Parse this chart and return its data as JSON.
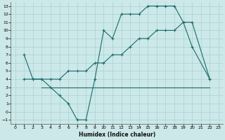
{
  "xlabel": "Humidex (Indice chaleur)",
  "bg_color": "#cce8e8",
  "line_color": "#1a6b6b",
  "xlim": [
    -0.5,
    23.5
  ],
  "ylim": [
    -1.5,
    13.5
  ],
  "xticks": [
    0,
    1,
    2,
    3,
    4,
    5,
    6,
    7,
    8,
    9,
    10,
    11,
    12,
    13,
    14,
    15,
    16,
    17,
    18,
    19,
    20,
    21,
    22,
    23
  ],
  "yticks": [
    -1,
    0,
    1,
    2,
    3,
    4,
    5,
    6,
    7,
    8,
    9,
    10,
    11,
    12,
    13
  ],
  "line1_x": [
    1,
    2,
    3,
    4,
    5,
    6,
    7,
    8,
    9,
    10,
    11,
    12,
    13,
    14,
    15,
    16,
    17,
    18,
    19,
    20,
    22
  ],
  "line1_y": [
    7,
    4,
    4,
    3,
    2,
    1,
    -1,
    -1,
    4,
    10,
    9,
    12,
    12,
    12,
    13,
    13,
    13,
    13,
    11,
    8,
    4
  ],
  "line2_x": [
    3,
    22
  ],
  "line2_y": [
    3,
    3
  ],
  "line3_x": [
    1,
    2,
    3,
    4,
    5,
    6,
    7,
    8,
    9,
    10,
    11,
    12,
    13,
    14,
    15,
    16,
    17,
    18,
    19,
    20,
    22
  ],
  "line3_y": [
    4,
    4,
    4,
    4,
    4,
    5,
    5,
    5,
    6,
    6,
    7,
    7,
    8,
    9,
    9,
    10,
    10,
    10,
    11,
    11,
    4
  ]
}
